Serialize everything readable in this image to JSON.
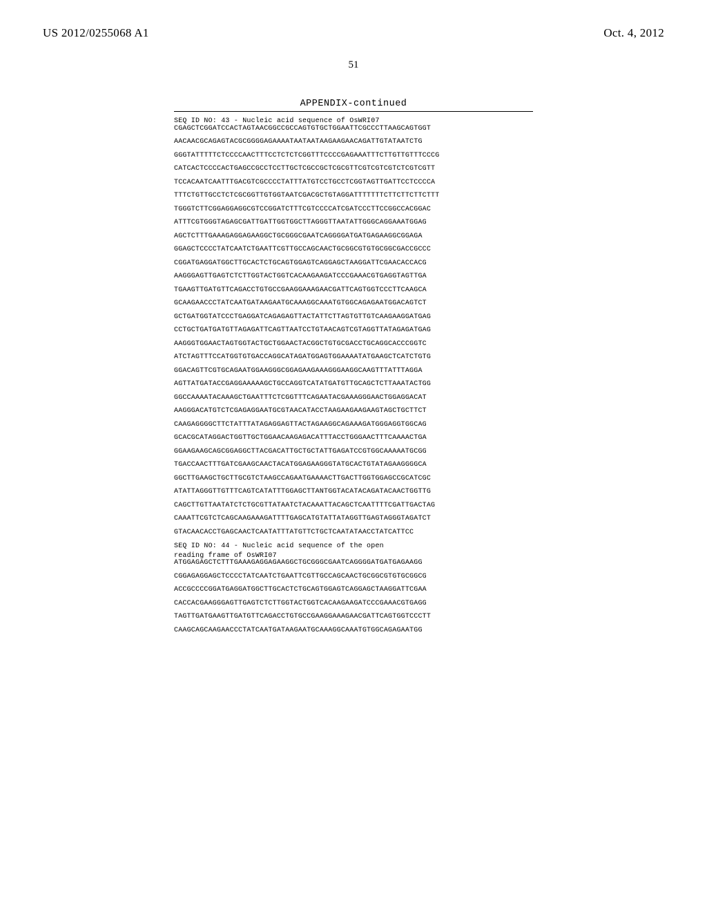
{
  "header": {
    "publication_number": "US 2012/0255068 A1",
    "publication_date": "Oct. 4, 2012"
  },
  "page_number": "51",
  "appendix_label": "APPENDIX-continued",
  "entries": [
    {
      "header_lines": [
        "SEQ ID NO: 43 - Nucleic acid sequence of OsWRI07"
      ],
      "sequence_lines": [
        "CGAGCTCGGATCCACTAGTAACGGCCGCCAGTGTGCTGGAATTCGCCCTTAAGCAGTGGT",
        "AACAACGCAGAGTACGCGGGGAGAAAATAATAATAAGAAGAACAGATTGTATAATCTG",
        "GGGTATTTTTCTCCCCAACTTTCCTCTCTCGGTTTCCCCGAGAAATTTCTTGTTGTTTCCCG",
        "CATCACTCCCCACTGAGCCGCCTCCTTGCTCGCCGCTCGCGTTCGTCGTCGTCTCGTCGTT",
        "TCCACAATCAATTTGACGTCGCCCCTATTTATGTCCTGCCTCGGTAGTTGATTCCTCCCCA",
        "TTTCTGTTGCCTCTCGCGGTTGTGGTAATCGACGCTGTAGGATTTTTTTCTTCTTCTTCTTT",
        "TGGGTCTTCGGAGGAGGCGTCCGGATCTTTCGTCCCCATCGATCCCTTCCGGCCACGGAC",
        "ATTTCGTGGGTAGAGCGATTGATTGGTGGCTTAGGGTTAATATTGGGCAGGAAATGGAG",
        "AGCTCTTTGAAAGAGGAGAAGGCTGCGGGCGAATCAGGGGATGATGAGAAGGCGGAGA",
        "GGAGCTCCCCTATCAATCTGAATTCGTTGCCAGCAACTGCGGCGTGTGCGGCGACCGCCC",
        "CGGATGAGGATGGCTTGCACTCTGCAGTGGAGTCAGGAGCTAAGGATTCGAACACCACG",
        "AAGGGAGTTGAGTCTCTTGGTACTGGTCACAAGAAGATCCCGAAACGTGAGGTAGTTGA",
        "TGAAGTTGATGTTCAGACCTGTGCCGAAGGAAAGAACGATTCAGTGGTCCCTTCAAGCA",
        "GCAAGAACCCTATCAATGATAAGAATGCAAAGGCAAATGTGGCAGAGAATGGACAGTCT",
        "GCTGATGGTATCCCTGAGGATCAGAGAGTTACTATTCTTAGTGTTGTCAAGAAGGATGAG",
        "CCTGCTGATGATGTTAGAGATTCAGTTAATCCTGTAACAGTCGTAGGTTATAGAGATGAG",
        "AAGGGTGGAACTAGTGGTACTGCTGGAACTACGGCTGTGCGACCTGCAGGCACCCGGTC",
        "ATCTAGTTTCCATGGTGTGACCAGGCATAGATGGAGTGGAAAATATGAAGCTCATCTGTG",
        "GGACAGTTCGTGCAGAATGGAAGGGCGGAGAAGAAAGGGAAGGCAAGTTTATTTAGGA",
        "AGTTATGATACCGAGGAAAAAGCTGCCAGGTCATATGATGTTGCAGCTCTTAAATACTGG",
        "GGCCAAAATACAAAGCTGAATTTCTCGGTTTCAGAATACGAAAGGGAACTGGAGGACAT",
        "AAGGGACATGTCTCGAGAGGAATGCGTAACATACCTAAGAAGAAGAAGTAGCTGCTTCT",
        "CAAGAGGGGCTTCTATTTATAGAGGAGTTACTAGAAGGCAGAAAGATGGGAGGTGGCAG",
        "GCACGCATAGGACTGGTTGCTGGAACAAGAGACATTTACCTGGGAACTTTCAAAACTGA",
        "GGAAGAAGCAGCGGAGGCTTACGACATTGCTGCTATTGAGATCCGTGGCAAAAATGCGG",
        "TGACCAACTTTGATCGAAGCAACTACATGGAGAAGGGTATGCACTGTATAGAAGGGGCA",
        "GGCTTGAAGCTGCTTGCGTCTAAGCCAGAATGAAAACTTGACTTGGTGGAGCCGCATCGC",
        "ATATTAGGGTTGTTTCAGTCATATTTGGAGCTTANTGGTACATACAGATACAACTGGTTG",
        "CAGCTTGTTAATATCTCTGCGTTATAATCTACAAATTACAGCTCAATTTTCGATTGACTAG",
        "CAAATTCGTCTCAGCAAGAAAGATTTTGAGCATGTATTATAGGTTGAGTAGGGTAGATCT",
        "GTACAACACCTGAGCAACTCAATATTTATGTTCTGCTCAATATAACCTATCATTCC"
      ]
    },
    {
      "header_lines": [
        "SEQ ID NO: 44 - Nucleic acid sequence of the open",
        "reading frame of OsWRI07"
      ],
      "sequence_lines": [
        "ATGGAGAGCTCTTTGAAAGAGGAGAAGGCTGCGGGCGAATCAGGGGATGATGAGAAGG",
        "CGGAGAGGAGCTCCCCTATCAATCTGAATTCGTTGCCAGCAACTGCGGCGTGTGCGGCG",
        "ACCGCCCCGGATGAGGATGGCTTGCACTCTGCAGTGGAGTCAGGAGCTAAGGATTCGAA",
        "CACCACGAAGGGAGTTGAGTCTCTTGGTACTGGTCACAAGAAGATCCCGAAACGTGAGG",
        "TAGTTGATGAAGTTGATGTTCAGACCTGTGCCGAAGGAAAGAACGATTCAGTGGTCCCTT",
        "CAAGCAGCAAGAACCCTATCAATGATAAGAATGCAAAGGCAAATGTGGCAGAGAATGG"
      ]
    }
  ]
}
